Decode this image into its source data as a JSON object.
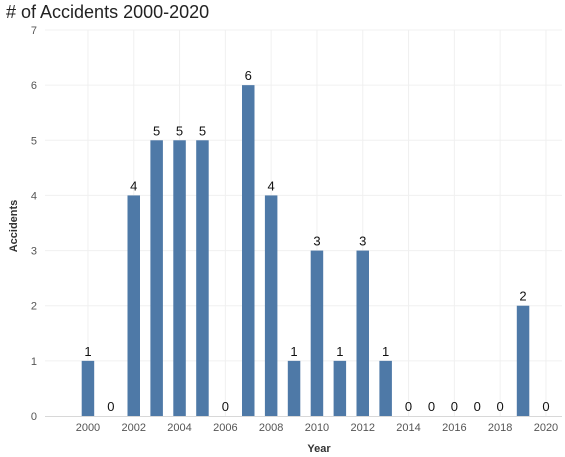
{
  "chart_data": {
    "type": "bar",
    "title": "# of Accidents 2000-2020",
    "xlabel": "Year",
    "ylabel": "Accidents",
    "categories": [
      2000,
      2001,
      2002,
      2003,
      2004,
      2005,
      2006,
      2007,
      2008,
      2009,
      2010,
      2011,
      2012,
      2013,
      2014,
      2015,
      2016,
      2017,
      2018,
      2019,
      2020
    ],
    "values": [
      1,
      0,
      4,
      5,
      5,
      5,
      0,
      6,
      4,
      1,
      3,
      1,
      3,
      1,
      0,
      0,
      0,
      0,
      0,
      2,
      0
    ],
    "x_tick_labels": [
      "2000",
      "2002",
      "2004",
      "2006",
      "2008",
      "2010",
      "2012",
      "2014",
      "2016",
      "2018",
      "2020"
    ],
    "y_ticks": [
      0,
      1,
      2,
      3,
      4,
      5,
      6,
      7
    ],
    "ylim": [
      0,
      7
    ],
    "bar_color": "#4e79a7",
    "grid": true,
    "data_labels": true
  }
}
